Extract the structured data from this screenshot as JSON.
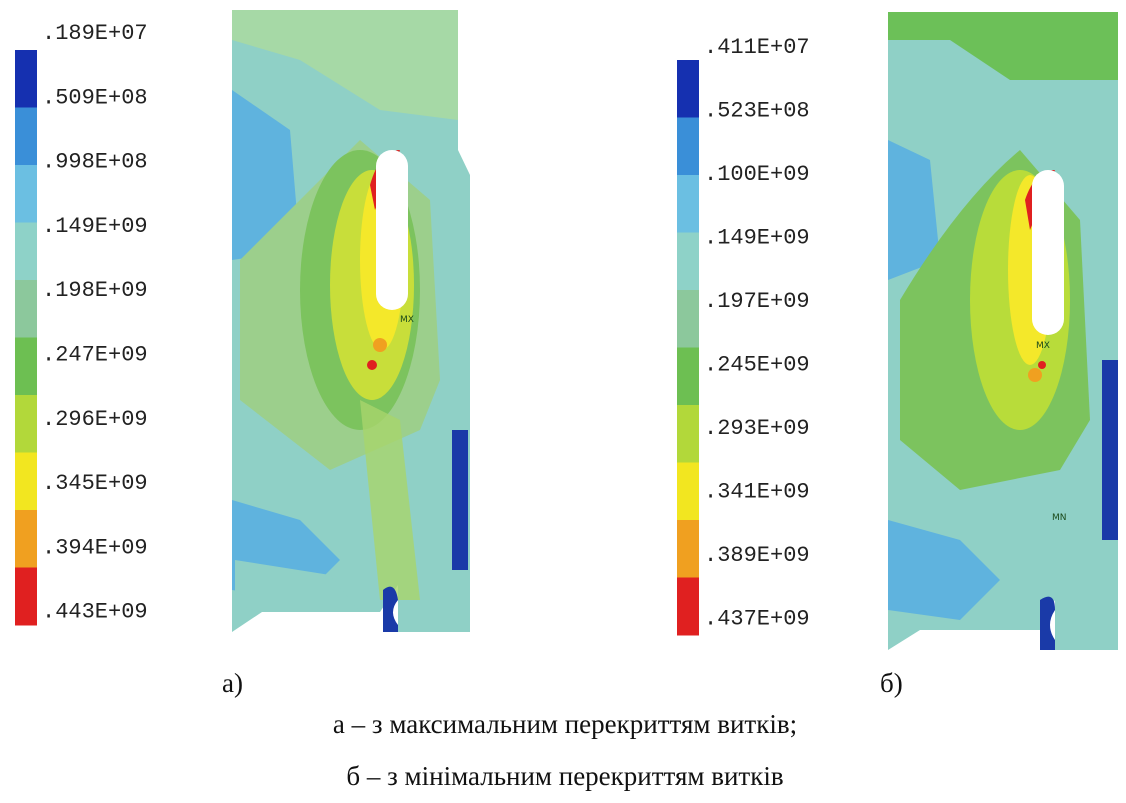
{
  "panels": [
    {
      "label": "а)",
      "markers": [
        "MX"
      ],
      "legend_labels": [
        ".189E+07",
        ".509E+08",
        ".998E+08",
        ".149E+09",
        ".198E+09",
        ".247E+09",
        ".296E+09",
        ".345E+09",
        ".394E+09",
        ".443E+09"
      ]
    },
    {
      "label": "б)",
      "markers": [
        "MX",
        "MN"
      ],
      "legend_labels": [
        ".411E+07",
        ".523E+08",
        ".100E+09",
        ".149E+09",
        ".197E+09",
        ".245E+09",
        ".293E+09",
        ".341E+09",
        ".389E+09",
        ".437E+09"
      ]
    }
  ],
  "caption": [
    "а – з максимальним перекриттям витків;",
    "б – з мінімальним перекриттям витків"
  ]
}
